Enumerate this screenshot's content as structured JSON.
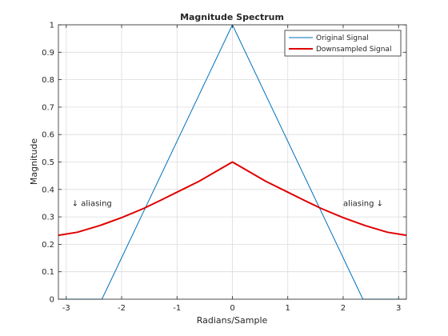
{
  "chart_data": {
    "type": "line",
    "title": "Magnitude Spectrum",
    "xlabel": "Radians/Sample",
    "ylabel": "Magnitude",
    "xlim": [
      -3.1416,
      3.1416
    ],
    "ylim": [
      0,
      1
    ],
    "xticks": [
      -3,
      -2,
      -1,
      0,
      1,
      2,
      3
    ],
    "yticks": [
      0,
      0.1,
      0.2,
      0.3,
      0.4,
      0.5,
      0.6,
      0.7,
      0.8,
      0.9,
      1
    ],
    "grid": true,
    "legend_position": "top-right",
    "series": [
      {
        "name": "Original Signal",
        "color": "#0072BD",
        "x": [
          -3.1416,
          -2.3562,
          0,
          2.3562,
          3.1416
        ],
        "y": [
          0,
          0,
          1,
          0,
          0
        ]
      },
      {
        "name": "Downsampled Signal",
        "color": "#E00000",
        "x": [
          -3.1416,
          -2.8,
          -2.4,
          -2.0,
          -1.6,
          -1.3,
          -1.0,
          -0.6,
          -0.3,
          0,
          0.3,
          0.6,
          1.0,
          1.3,
          1.6,
          2.0,
          2.4,
          2.8,
          3.1416
        ],
        "y": [
          0.233,
          0.244,
          0.268,
          0.297,
          0.331,
          0.36,
          0.39,
          0.43,
          0.465,
          0.5,
          0.465,
          0.43,
          0.39,
          0.36,
          0.331,
          0.297,
          0.268,
          0.244,
          0.233
        ]
      }
    ],
    "annotations": [
      {
        "text": "↓ aliasing",
        "x": -2.9,
        "y": 0.34
      },
      {
        "text": "aliasing ↓",
        "x": 2.0,
        "y": 0.34
      }
    ]
  }
}
